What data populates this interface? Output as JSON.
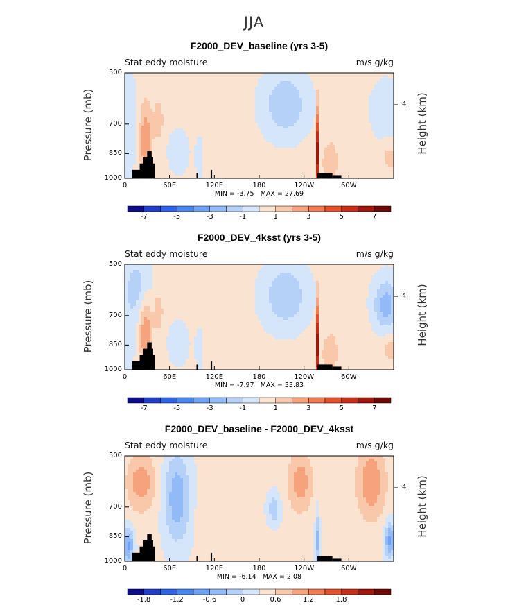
{
  "title": "JJA",
  "chart_data": [
    {
      "type": "heatmap",
      "title": "F2000_DEV_baseline (yrs 3-5)",
      "left_text": "Stat eddy moisture",
      "right_text": "m/s g/kg",
      "ylabel": "Pressure (mb)",
      "ylabel_right": "Height (km)",
      "yticks": [
        "500",
        "700",
        "850",
        "1000"
      ],
      "ytick_values": [
        500,
        700,
        850,
        1000
      ],
      "right_ticks": [
        "4"
      ],
      "xticks": [
        "0",
        "60E",
        "120E",
        "180",
        "120W",
        "60W"
      ],
      "xtick_values": [
        0,
        60,
        120,
        180,
        240,
        300
      ],
      "xlim": [
        0,
        360
      ],
      "ylim": [
        1000,
        500
      ],
      "min_label": "MIN =",
      "min_value": "-3.75",
      "max_label": "MAX =",
      "max_value": "27.69",
      "colorbar_labels": [
        "-7",
        "-5",
        "-3",
        "-1",
        "1",
        "3",
        "5",
        "7"
      ]
    },
    {
      "type": "heatmap",
      "title": "F2000_DEV_4ksst (yrs 3-5)",
      "left_text": "Stat eddy moisture",
      "right_text": "m/s g/kg",
      "ylabel": "Pressure (mb)",
      "ylabel_right": "Height (km)",
      "yticks": [
        "500",
        "700",
        "850",
        "1000"
      ],
      "ytick_values": [
        500,
        700,
        850,
        1000
      ],
      "right_ticks": [
        "4"
      ],
      "xticks": [
        "0",
        "60E",
        "120E",
        "180",
        "120W",
        "60W"
      ],
      "xtick_values": [
        0,
        60,
        120,
        180,
        240,
        300
      ],
      "xlim": [
        0,
        360
      ],
      "ylim": [
        1000,
        500
      ],
      "min_label": "MIN =",
      "min_value": "-7.97",
      "max_label": "MAX =",
      "max_value": "33.83",
      "colorbar_labels": [
        "-7",
        "-5",
        "-3",
        "-1",
        "1",
        "3",
        "5",
        "7"
      ]
    },
    {
      "type": "heatmap",
      "title": "F2000_DEV_baseline - F2000_DEV_4ksst",
      "left_text": "Stat eddy moisture",
      "right_text": "m/s g/kg",
      "ylabel": "Pressure (mb)",
      "ylabel_right": "Height (km)",
      "yticks": [
        "500",
        "700",
        "850",
        "1000"
      ],
      "ytick_values": [
        500,
        700,
        850,
        1000
      ],
      "right_ticks": [
        "4"
      ],
      "xticks": [
        "0",
        "60E",
        "120E",
        "180",
        "120W",
        "60W"
      ],
      "xtick_values": [
        0,
        60,
        120,
        180,
        240,
        300
      ],
      "xlim": [
        0,
        360
      ],
      "ylim": [
        1000,
        500
      ],
      "min_label": "MIN =",
      "min_value": "-6.14",
      "max_label": "MAX =",
      "max_value": "2.08",
      "colorbar_labels": [
        "-1.8",
        "-1.2",
        "-0.6",
        "0",
        "0.6",
        "1.2",
        "1.8"
      ]
    }
  ],
  "colorbar_colors": [
    "#0d0d8c",
    "#1f3fc8",
    "#2e63e8",
    "#4a86f0",
    "#6fa2f5",
    "#92baf7",
    "#b6d1f8",
    "#d6e6fa",
    "#fbe3d2",
    "#f9c7aa",
    "#f6a27c",
    "#f27a52",
    "#e5512d",
    "#c82d17",
    "#a0170c",
    "#6e0a05"
  ]
}
